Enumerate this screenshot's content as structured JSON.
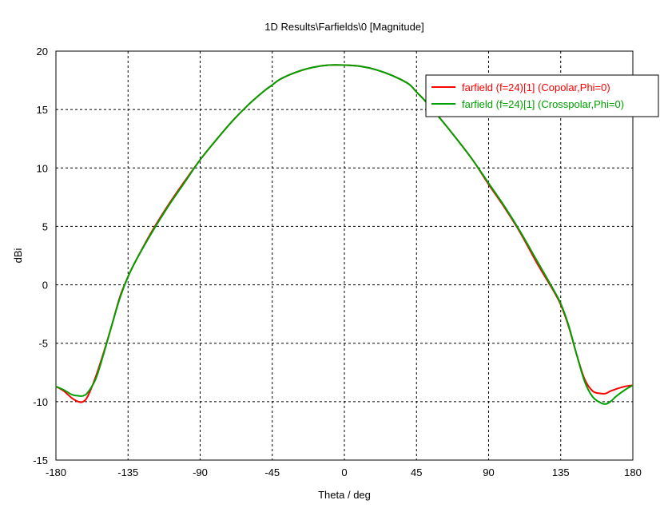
{
  "chart_data": {
    "type": "line",
    "title": "1D Results\\Farfields\\0 [Magnitude]",
    "xlabel": "Theta / deg",
    "ylabel": "dBi",
    "xlim": [
      -180,
      180
    ],
    "ylim": [
      -15,
      20
    ],
    "xticks": [
      -180,
      -135,
      -90,
      -45,
      0,
      45,
      90,
      135,
      180
    ],
    "yticks": [
      -15,
      -10,
      -5,
      0,
      5,
      10,
      15,
      20
    ],
    "grid": true,
    "legend_position": "top-right",
    "series": [
      {
        "name": "farfield (f=24)[1] (Copolar,Phi=0)",
        "color": "#ff0000",
        "x": [
          -180,
          -175,
          -170,
          -166,
          -163,
          -160,
          -155,
          -150,
          -145,
          -140,
          -135,
          -130,
          -120,
          -110,
          -100,
          -90,
          -80,
          -70,
          -60,
          -50,
          -45,
          -40,
          -30,
          -20,
          -10,
          0,
          10,
          20,
          30,
          40,
          45,
          50,
          60,
          70,
          80,
          90,
          100,
          110,
          120,
          130,
          135,
          140,
          145,
          150,
          155,
          160,
          163,
          166,
          170,
          175,
          180
        ],
        "y": [
          -8.7,
          -9.1,
          -9.7,
          -10.0,
          -10.0,
          -9.5,
          -7.8,
          -5.7,
          -3.4,
          -1.0,
          0.7,
          2.1,
          4.6,
          6.8,
          8.8,
          10.7,
          12.4,
          14.0,
          15.4,
          16.6,
          17.1,
          17.6,
          18.2,
          18.6,
          18.8,
          18.8,
          18.7,
          18.4,
          17.9,
          17.2,
          16.5,
          15.8,
          14.2,
          12.5,
          10.7,
          8.6,
          6.6,
          4.4,
          1.9,
          -0.4,
          -1.7,
          -3.6,
          -6.0,
          -8.1,
          -9.1,
          -9.3,
          -9.3,
          -9.1,
          -8.9,
          -8.7,
          -8.6
        ]
      },
      {
        "name": "farfield (f=24)[1] (Crosspolar,Phi=0)",
        "color": "#00a000",
        "x": [
          -180,
          -175,
          -170,
          -166,
          -163,
          -160,
          -155,
          -150,
          -145,
          -140,
          -135,
          -130,
          -120,
          -110,
          -100,
          -90,
          -80,
          -70,
          -60,
          -50,
          -45,
          -40,
          -30,
          -20,
          -10,
          0,
          10,
          20,
          30,
          40,
          45,
          50,
          60,
          70,
          80,
          90,
          100,
          110,
          120,
          130,
          135,
          140,
          145,
          150,
          155,
          160,
          163,
          166,
          170,
          175,
          180
        ],
        "y": [
          -8.7,
          -9.0,
          -9.4,
          -9.5,
          -9.5,
          -9.2,
          -8.0,
          -5.8,
          -3.4,
          -1.1,
          0.7,
          2.1,
          4.5,
          6.7,
          8.7,
          10.7,
          12.4,
          14.0,
          15.4,
          16.6,
          17.1,
          17.6,
          18.2,
          18.6,
          18.8,
          18.8,
          18.7,
          18.4,
          17.9,
          17.2,
          16.5,
          15.8,
          14.2,
          12.5,
          10.7,
          8.7,
          6.7,
          4.5,
          2.1,
          -0.3,
          -1.6,
          -3.5,
          -6.0,
          -8.3,
          -9.6,
          -10.1,
          -10.2,
          -10.0,
          -9.5,
          -9.0,
          -8.6
        ]
      }
    ]
  }
}
